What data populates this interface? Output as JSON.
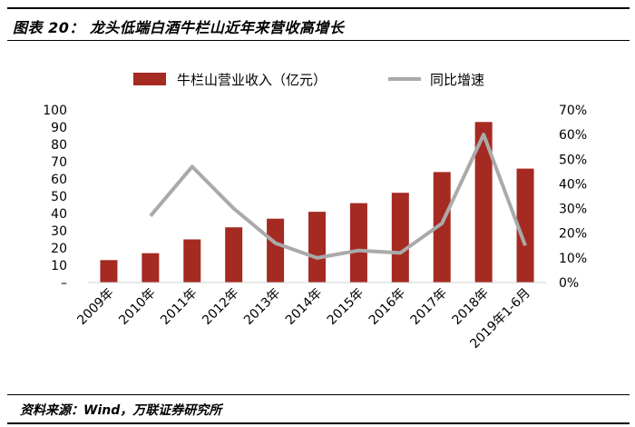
{
  "title": "图表 20： 龙头低端白酒牛栏山近年来营收高增长",
  "source": "资料来源：Wind，万联证券研究所",
  "chart_data": {
    "type": "bar",
    "categories": [
      "2009年",
      "2010年",
      "2011年",
      "2012年",
      "2013年",
      "2014年",
      "2015年",
      "2016年",
      "2017年",
      "2018年",
      "2019年1-6月"
    ],
    "series": [
      {
        "name": "牛栏山营业收入（亿元）",
        "type": "bar",
        "axis": "left",
        "color": "#a52a22",
        "values": [
          13,
          17,
          25,
          32,
          37,
          41,
          46,
          52,
          64,
          93,
          66
        ]
      },
      {
        "name": "同比增速",
        "type": "line",
        "axis": "right",
        "color": "#aaaaaa",
        "values": [
          null,
          27,
          47,
          30,
          16,
          10,
          13,
          12,
          24,
          60,
          15
        ]
      }
    ],
    "left_axis": {
      "ylim": [
        0,
        100
      ],
      "ticks": [
        "–",
        "10",
        "20",
        "30",
        "40",
        "50",
        "60",
        "70",
        "80",
        "90",
        "100"
      ]
    },
    "right_axis": {
      "ylim": [
        0,
        70
      ],
      "ticks": [
        "0%",
        "10%",
        "20%",
        "30%",
        "40%",
        "50%",
        "60%",
        "70%"
      ]
    },
    "legend_position": "top-center",
    "grid": false
  }
}
